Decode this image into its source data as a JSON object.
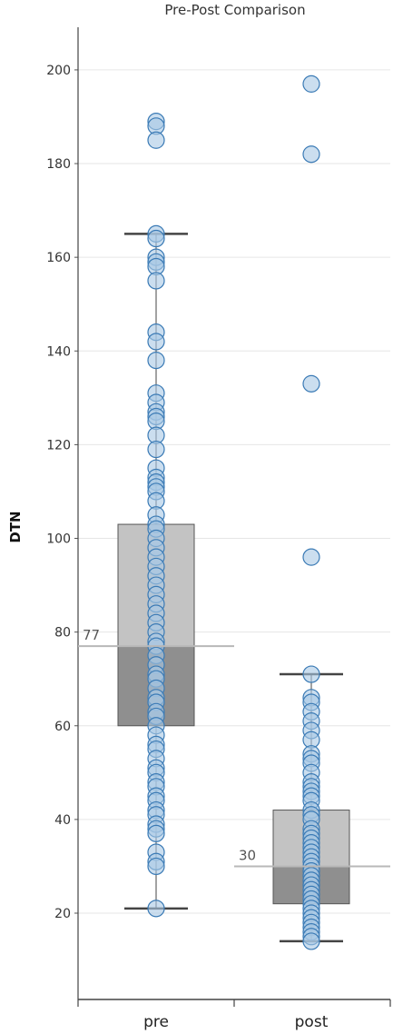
{
  "chart_data": {
    "type": "box",
    "title": "Pre-Post Comparison",
    "ylabel": "DTN",
    "xlabel": "",
    "ylim": [
      12,
      210
    ],
    "yticks": [
      20,
      40,
      60,
      80,
      100,
      120,
      140,
      160,
      180,
      200
    ],
    "grid": true,
    "categories": [
      "pre",
      "post"
    ],
    "box_colors": {
      "upper": "#c3c3c3",
      "lower": "#8f8f8f",
      "point_fill": "#a9c8e4",
      "point_stroke": "#3a7ab5",
      "whisker": "#444444",
      "median_line": "#b8b8b8"
    },
    "groups": [
      {
        "category": "pre",
        "min": 21,
        "q1": 60,
        "median": 77,
        "q3": 103,
        "max": 165,
        "median_label": "77",
        "points": [
          189,
          188,
          185,
          165,
          164,
          160,
          159,
          158,
          155,
          144,
          142,
          138,
          131,
          129,
          127,
          126,
          125,
          122,
          119,
          115,
          113,
          112,
          111,
          110,
          108,
          105,
          103,
          102,
          100,
          98,
          96,
          94,
          92,
          90,
          88,
          86,
          84,
          82,
          80,
          78,
          77,
          75,
          73,
          71,
          70,
          68,
          66,
          65,
          63,
          62,
          60,
          58,
          56,
          55,
          53,
          51,
          50,
          48,
          47,
          45,
          44,
          42,
          41,
          39,
          38,
          37,
          33,
          31,
          30,
          21
        ]
      },
      {
        "category": "post",
        "min": 14,
        "q1": 22,
        "median": 30,
        "q3": 42,
        "max": 71,
        "median_label": "30",
        "points": [
          197,
          182,
          133,
          96,
          71,
          66,
          65,
          63,
          61,
          59,
          57,
          54,
          53,
          52,
          50,
          48,
          47,
          46,
          45,
          44,
          42,
          41,
          40,
          38,
          37,
          36,
          35,
          34,
          33,
          32,
          31,
          30,
          29,
          28,
          27,
          26,
          25,
          24,
          23,
          22,
          21,
          20,
          19,
          18,
          17,
          16,
          15,
          14
        ]
      }
    ]
  }
}
